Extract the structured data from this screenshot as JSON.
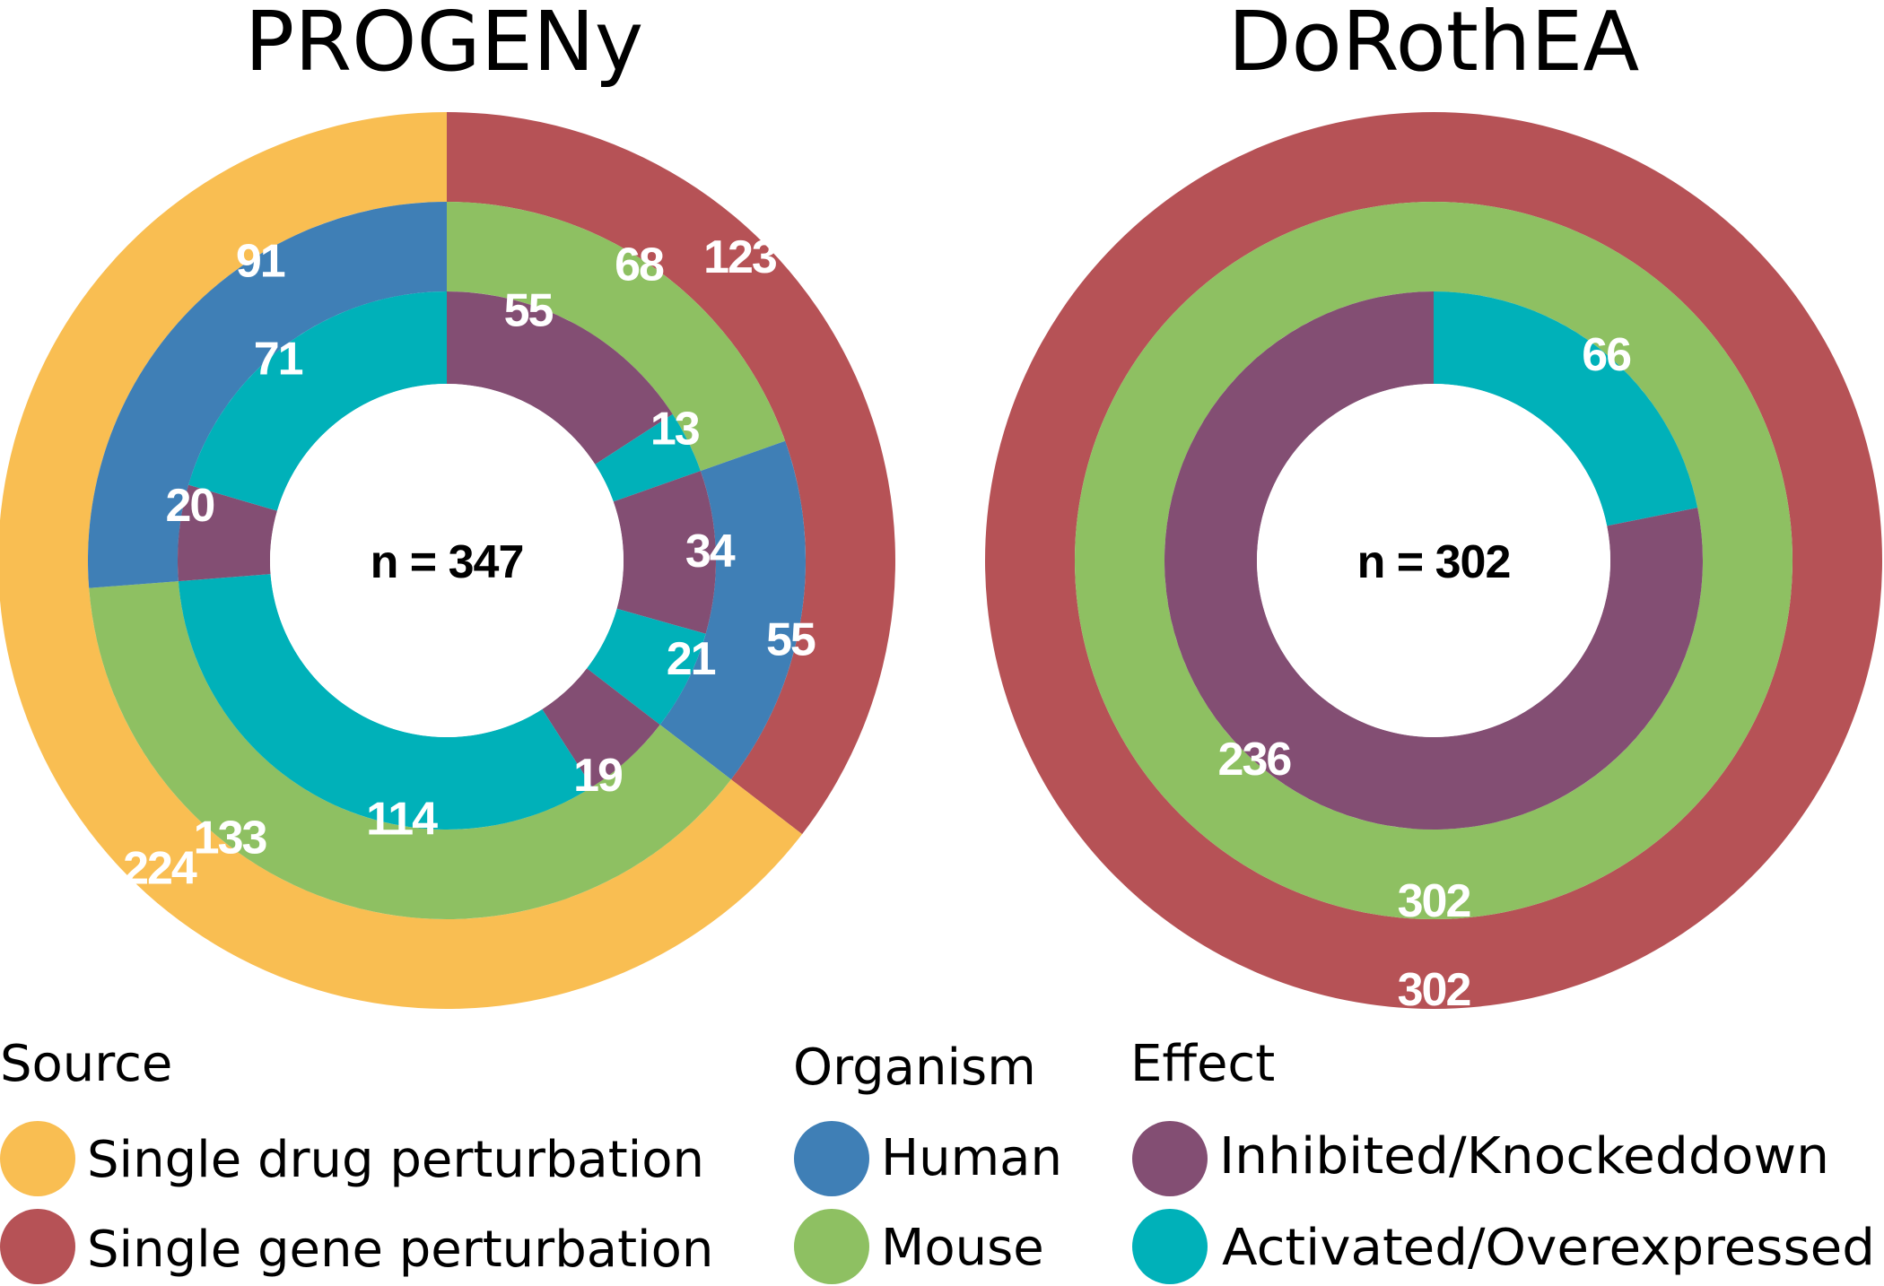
{
  "colors": {
    "single_drug": "#F9BE52",
    "single_gene": "#B65256",
    "human": "#3F7FB6",
    "mouse": "#8EC062",
    "inhibited": "#834E73",
    "activated": "#00B1B9"
  },
  "chart_data": [
    {
      "type": "pie",
      "title": "PROGENy",
      "center_label": "n =  347",
      "rings": [
        {
          "name": "Source",
          "segments": [
            {
              "category": "Single gene perturbation",
              "value": 123,
              "label": "123",
              "color_key": "single_gene"
            },
            {
              "category": "Single drug perturbation",
              "value": 224,
              "label": "224",
              "color_key": "single_drug"
            }
          ]
        },
        {
          "name": "Organism",
          "segments": [
            {
              "category": "Mouse",
              "value": 68,
              "label": "68",
              "color_key": "mouse"
            },
            {
              "category": "Human",
              "value": 55,
              "label": "55",
              "color_key": "human"
            },
            {
              "category": "Mouse",
              "value": 133,
              "label": "133",
              "color_key": "mouse"
            },
            {
              "category": "Human",
              "value": 91,
              "label": "91",
              "color_key": "human"
            }
          ]
        },
        {
          "name": "Effect",
          "segments": [
            {
              "category": "Inhibited/Knockeddown",
              "value": 55,
              "label": "55",
              "color_key": "inhibited"
            },
            {
              "category": "Activated/Overexpressed",
              "value": 13,
              "label": "13",
              "color_key": "activated"
            },
            {
              "category": "Inhibited/Knockeddown",
              "value": 34,
              "label": "34",
              "color_key": "inhibited"
            },
            {
              "category": "Activated/Overexpressed",
              "value": 21,
              "label": "21",
              "color_key": "activated"
            },
            {
              "category": "Inhibited/Knockeddown",
              "value": 19,
              "label": "19",
              "color_key": "inhibited"
            },
            {
              "category": "Activated/Overexpressed",
              "value": 114,
              "label": "114",
              "color_key": "activated"
            },
            {
              "category": "Inhibited/Knockeddown",
              "value": 20,
              "label": "20",
              "color_key": "inhibited"
            },
            {
              "category": "Activated/Overexpressed",
              "value": 71,
              "label": "71",
              "color_key": "activated"
            }
          ]
        }
      ]
    },
    {
      "type": "pie",
      "title": "DoRothEA",
      "center_label": "n =  302",
      "rings": [
        {
          "name": "Source",
          "segments": [
            {
              "category": "Single gene perturbation",
              "value": 302,
              "label": "302",
              "color_key": "single_gene"
            }
          ]
        },
        {
          "name": "Organism",
          "segments": [
            {
              "category": "Mouse",
              "value": 302,
              "label": "302",
              "color_key": "mouse"
            }
          ]
        },
        {
          "name": "Effect",
          "segments": [
            {
              "category": "Activated/Overexpressed",
              "value": 66,
              "label": "66",
              "color_key": "activated"
            },
            {
              "category": "Inhibited/Knockeddown",
              "value": 236,
              "label": "236",
              "color_key": "inhibited"
            }
          ]
        }
      ]
    }
  ],
  "legend": {
    "groups": [
      {
        "title": "Source",
        "items": [
          {
            "label": "Single drug perturbation",
            "color_key": "single_drug"
          },
          {
            "label": "Single gene perturbation",
            "color_key": "single_gene"
          }
        ]
      },
      {
        "title": "Organism",
        "items": [
          {
            "label": "Human",
            "color_key": "human"
          },
          {
            "label": "Mouse",
            "color_key": "mouse"
          }
        ]
      },
      {
        "title": "Effect",
        "items": [
          {
            "label": "Inhibited/Knockeddown",
            "color_key": "inhibited"
          },
          {
            "label": "Activated/Overexpressed",
            "color_key": "activated"
          }
        ]
      }
    ]
  }
}
